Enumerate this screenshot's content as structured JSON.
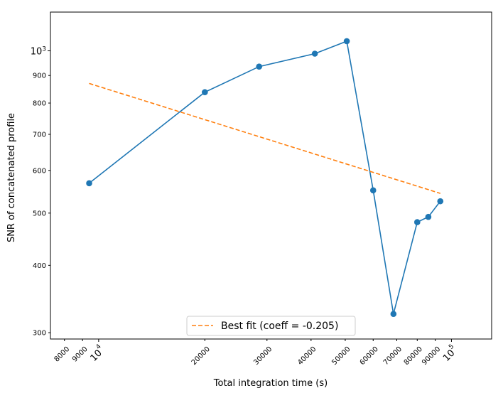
{
  "chart_data": {
    "type": "line",
    "xlabel": "Total integration time (s)",
    "ylabel": "SNR of concatenated profile",
    "x_scale": "log",
    "y_scale": "log",
    "xlim": [
      7300,
      130000
    ],
    "ylim": [
      292,
      1180
    ],
    "x_ticks": [
      {
        "value": 8000,
        "label": "8000",
        "major": false
      },
      {
        "value": 9000,
        "label": "9000",
        "major": false
      },
      {
        "value": 10000,
        "label": "10",
        "sup": "4",
        "major": true
      },
      {
        "value": 20000,
        "label": "20000",
        "major": false
      },
      {
        "value": 30000,
        "label": "30000",
        "major": false
      },
      {
        "value": 40000,
        "label": "40000",
        "major": false
      },
      {
        "value": 50000,
        "label": "50000",
        "major": false
      },
      {
        "value": 60000,
        "label": "60000",
        "major": false
      },
      {
        "value": 70000,
        "label": "70000",
        "major": false
      },
      {
        "value": 80000,
        "label": "80000",
        "major": false
      },
      {
        "value": 90000,
        "label": "90000",
        "major": false
      },
      {
        "value": 100000,
        "label": "10",
        "sup": "5",
        "major": true
      }
    ],
    "y_ticks": [
      {
        "value": 300,
        "label": "300",
        "major": false
      },
      {
        "value": 400,
        "label": "400",
        "major": false
      },
      {
        "value": 500,
        "label": "500",
        "major": false
      },
      {
        "value": 600,
        "label": "600",
        "major": false
      },
      {
        "value": 700,
        "label": "700",
        "major": false
      },
      {
        "value": 800,
        "label": "800",
        "major": false
      },
      {
        "value": 900,
        "label": "900",
        "major": false
      },
      {
        "value": 1000,
        "label": "10",
        "sup": "3",
        "major": true
      }
    ],
    "series": [
      {
        "style": "solid-line-with-markers",
        "color": "#1f77b4",
        "points": [
          {
            "x": 9400,
            "y": 568
          },
          {
            "x": 20000,
            "y": 838
          },
          {
            "x": 28500,
            "y": 935
          },
          {
            "x": 41000,
            "y": 988
          },
          {
            "x": 50500,
            "y": 1042
          },
          {
            "x": 60000,
            "y": 551
          },
          {
            "x": 68500,
            "y": 325
          },
          {
            "x": 80000,
            "y": 481
          },
          {
            "x": 86000,
            "y": 492
          },
          {
            "x": 93000,
            "y": 526
          }
        ]
      },
      {
        "name": "Best fit (coeff = -0.205)",
        "style": "dashed-line",
        "color": "#ff7f0e",
        "points": [
          {
            "x": 9400,
            "y": 870
          },
          {
            "x": 93000,
            "y": 544
          }
        ]
      }
    ],
    "legend": {
      "placement": "lower-center",
      "entries": [
        "Best fit (coeff = -0.205)"
      ]
    },
    "grid": false
  }
}
